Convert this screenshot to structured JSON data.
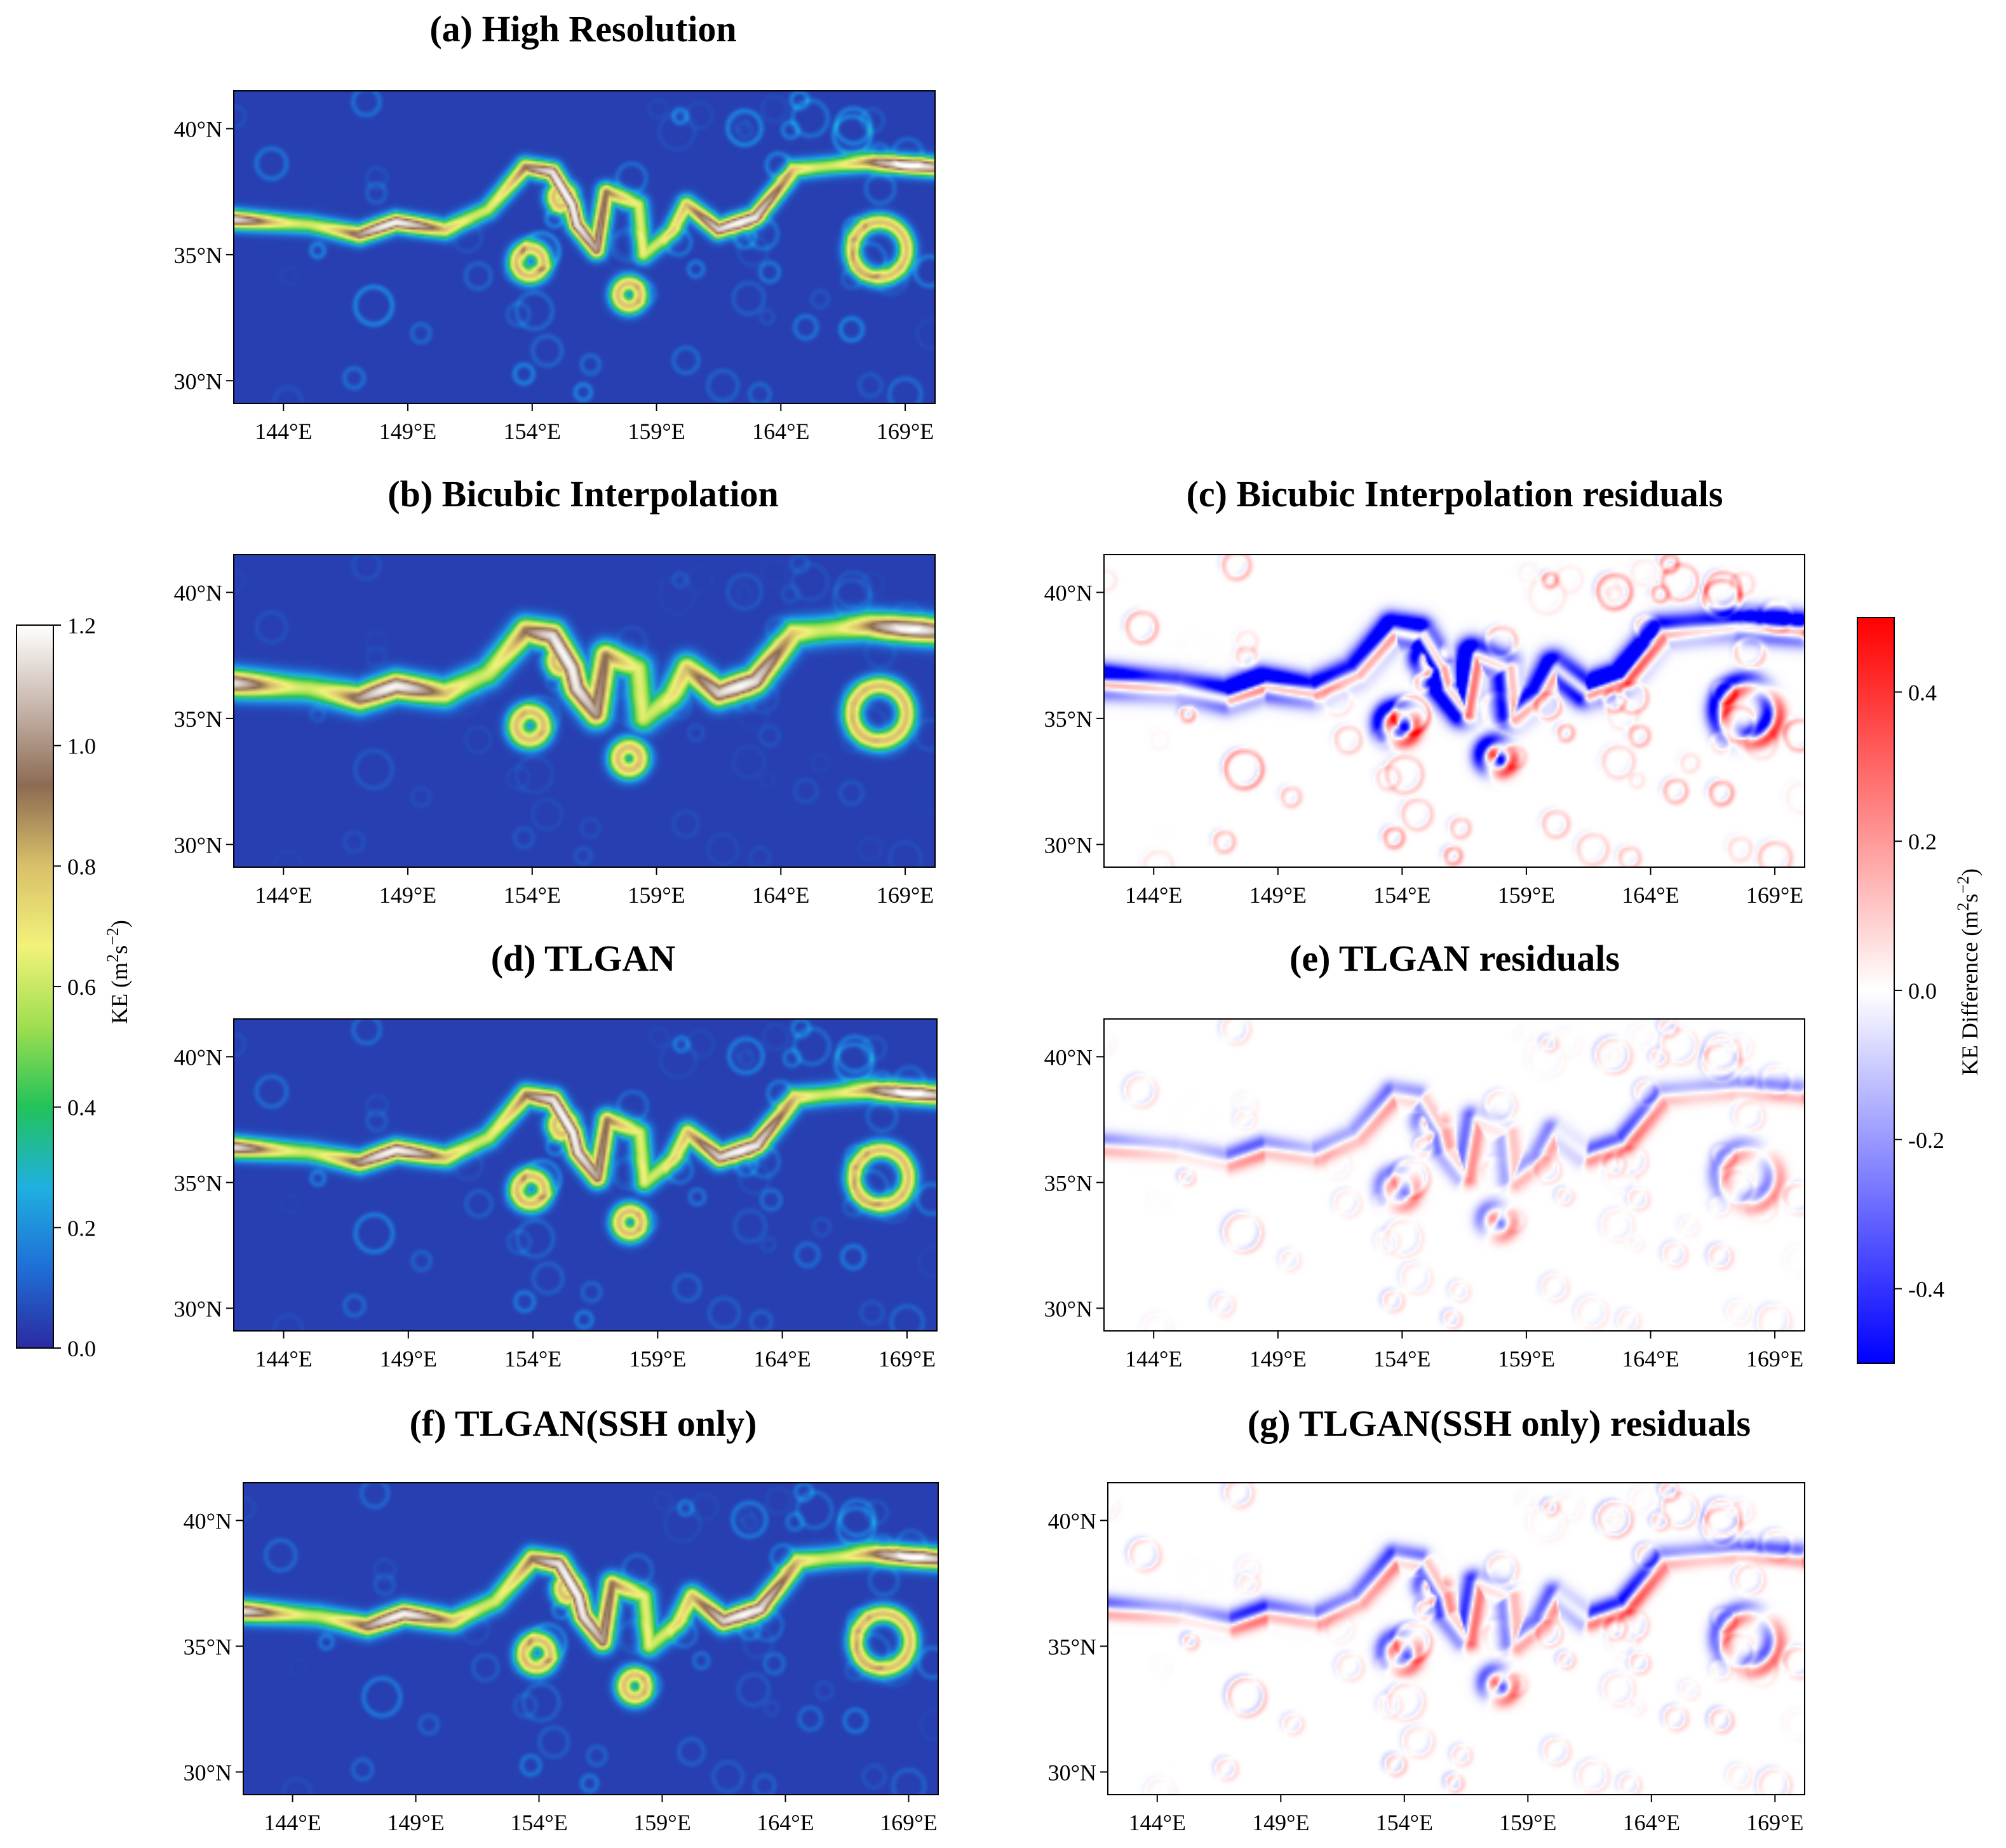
{
  "chart_data": {
    "type": "heatmap",
    "x_ticks": [
      "144°E",
      "149°E",
      "154°E",
      "159°E",
      "164°E",
      "169°E"
    ],
    "x_tick_values": [
      144,
      149,
      154,
      159,
      164,
      169
    ],
    "y_ticks": [
      "30°N",
      "35°N",
      "40°N"
    ],
    "y_tick_values": [
      30,
      35,
      40
    ],
    "xlim": [
      142,
      170.2
    ],
    "ylim": [
      29.1,
      41.5
    ],
    "panels": [
      {
        "id": "a",
        "title": "(a) High Resolution",
        "field": "KE",
        "detail": 1.0,
        "residual_scale": 0
      },
      {
        "id": "b",
        "title": "(b) Bicubic Interpolation",
        "field": "KE",
        "detail": 0.35,
        "residual_scale": 0
      },
      {
        "id": "c",
        "title": "(c) Bicubic Interpolation residuals",
        "field": "residual",
        "detail": 0.35,
        "residual_scale": 1.0
      },
      {
        "id": "d",
        "title": "(d) TLGAN",
        "field": "KE",
        "detail": 0.85,
        "residual_scale": 0
      },
      {
        "id": "e",
        "title": "(e) TLGAN residuals",
        "field": "residual",
        "detail": 0.85,
        "residual_scale": 0.45
      },
      {
        "id": "f",
        "title": "(f) TLGAN(SSH only)",
        "field": "KE",
        "detail": 0.8,
        "residual_scale": 0
      },
      {
        "id": "g",
        "title": "(g) TLGAN(SSH only) residuals",
        "field": "residual",
        "detail": 0.8,
        "residual_scale": 0.6
      }
    ],
    "colorbars": [
      {
        "id": "ke",
        "label_prefix": "KE (m",
        "label_suffix": ")",
        "range": [
          0.0,
          1.2
        ],
        "ticks": [
          "0.0",
          "0.2",
          "0.4",
          "0.6",
          "0.8",
          "1.0",
          "1.2"
        ],
        "tick_values": [
          0.0,
          0.2,
          0.4,
          0.6,
          0.8,
          1.0,
          1.2
        ],
        "colors": [
          "#2b2aa0",
          "#1f6fd6",
          "#1fb0e0",
          "#22c25a",
          "#9ede4f",
          "#f2f27a",
          "#d9c06a",
          "#8c6b52",
          "#c8b7ad",
          "#ffffff"
        ]
      },
      {
        "id": "diff",
        "label_prefix": "KE Difference (m",
        "label_suffix": ")",
        "range": [
          -0.5,
          0.5
        ],
        "ticks": [
          "-0.4",
          "-0.2",
          "0.0",
          "0.2",
          "0.4"
        ],
        "tick_values": [
          -0.4,
          -0.2,
          0.0,
          0.2,
          0.4
        ],
        "colors": [
          "#0000ff",
          "#ffffff",
          "#ff0000"
        ]
      }
    ]
  }
}
